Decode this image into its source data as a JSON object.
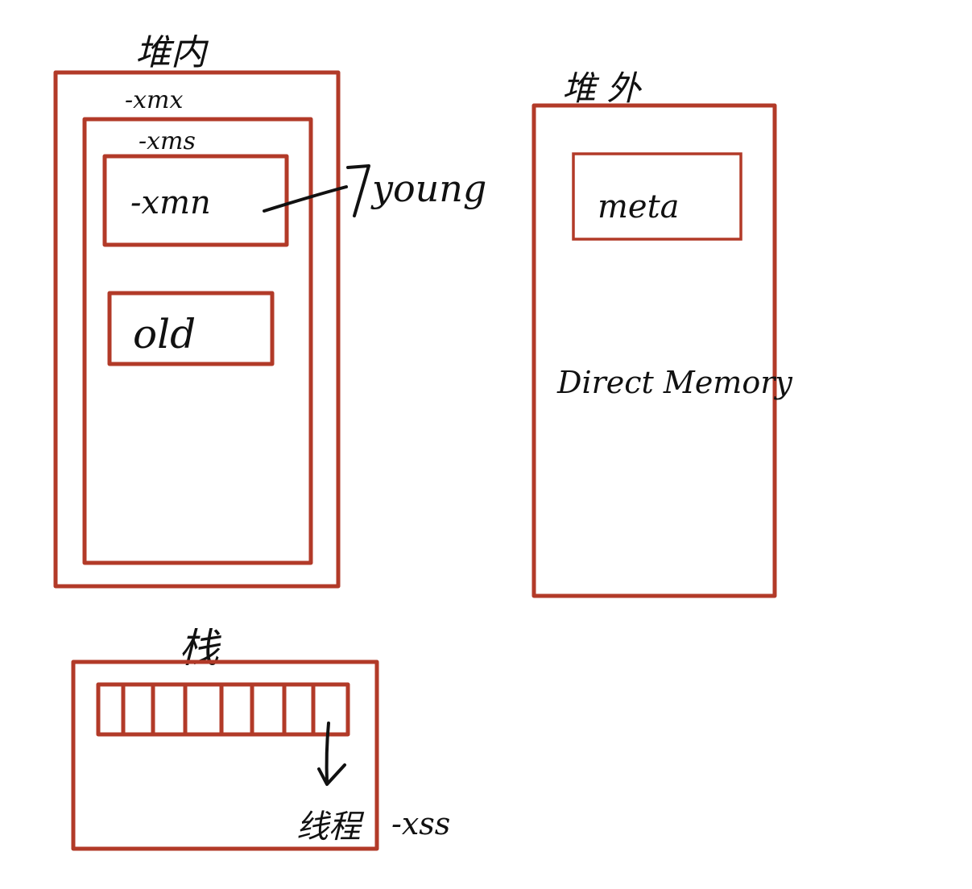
{
  "heap": {
    "title": "堆内",
    "xmx_label": "-xmx",
    "xms_label": "-xms",
    "xmn_label": "-xmn",
    "young_label": "young",
    "old_label": "old"
  },
  "offheap": {
    "title": "堆 外",
    "meta_label": "meta",
    "direct_memory_label": "Direct Memory"
  },
  "stack": {
    "title": "栈",
    "frame_count": 8,
    "thread_label": "线程",
    "xss_label": "-xss"
  },
  "colors": {
    "box": "#b23a28",
    "ink": "#111111",
    "background": "#ffffff"
  }
}
